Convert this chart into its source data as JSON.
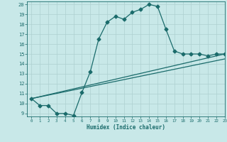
{
  "xlabel": "Humidex (Indice chaleur)",
  "bg_color": "#c8e8e8",
  "line_color": "#1a6b6b",
  "grid_color": "#aed0d0",
  "xlim": [
    -0.5,
    23
  ],
  "ylim": [
    8.7,
    20.3
  ],
  "xticks": [
    0,
    1,
    2,
    3,
    4,
    5,
    6,
    7,
    8,
    9,
    10,
    11,
    12,
    13,
    14,
    15,
    16,
    17,
    18,
    19,
    20,
    21,
    22,
    23
  ],
  "yticks": [
    9,
    10,
    11,
    12,
    13,
    14,
    15,
    16,
    17,
    18,
    19,
    20
  ],
  "line1_x": [
    0,
    1,
    2,
    3,
    4,
    5,
    6,
    7,
    8,
    9,
    10,
    11,
    12,
    13,
    14,
    15,
    16,
    17,
    18,
    19,
    20,
    21,
    22,
    23
  ],
  "line1_y": [
    10.5,
    9.8,
    9.8,
    9.0,
    9.0,
    8.8,
    11.1,
    13.2,
    16.5,
    18.2,
    18.8,
    18.5,
    19.2,
    19.5,
    20.0,
    19.8,
    17.5,
    15.3,
    15.0,
    15.0,
    15.0,
    14.8,
    15.0,
    15.0
  ],
  "line2_x": [
    0,
    23
  ],
  "line2_y": [
    10.5,
    15.0
  ],
  "line3_x": [
    0,
    23
  ],
  "line3_y": [
    10.5,
    14.5
  ],
  "marker": "D",
  "markersize": 2.5,
  "linewidth": 0.9
}
